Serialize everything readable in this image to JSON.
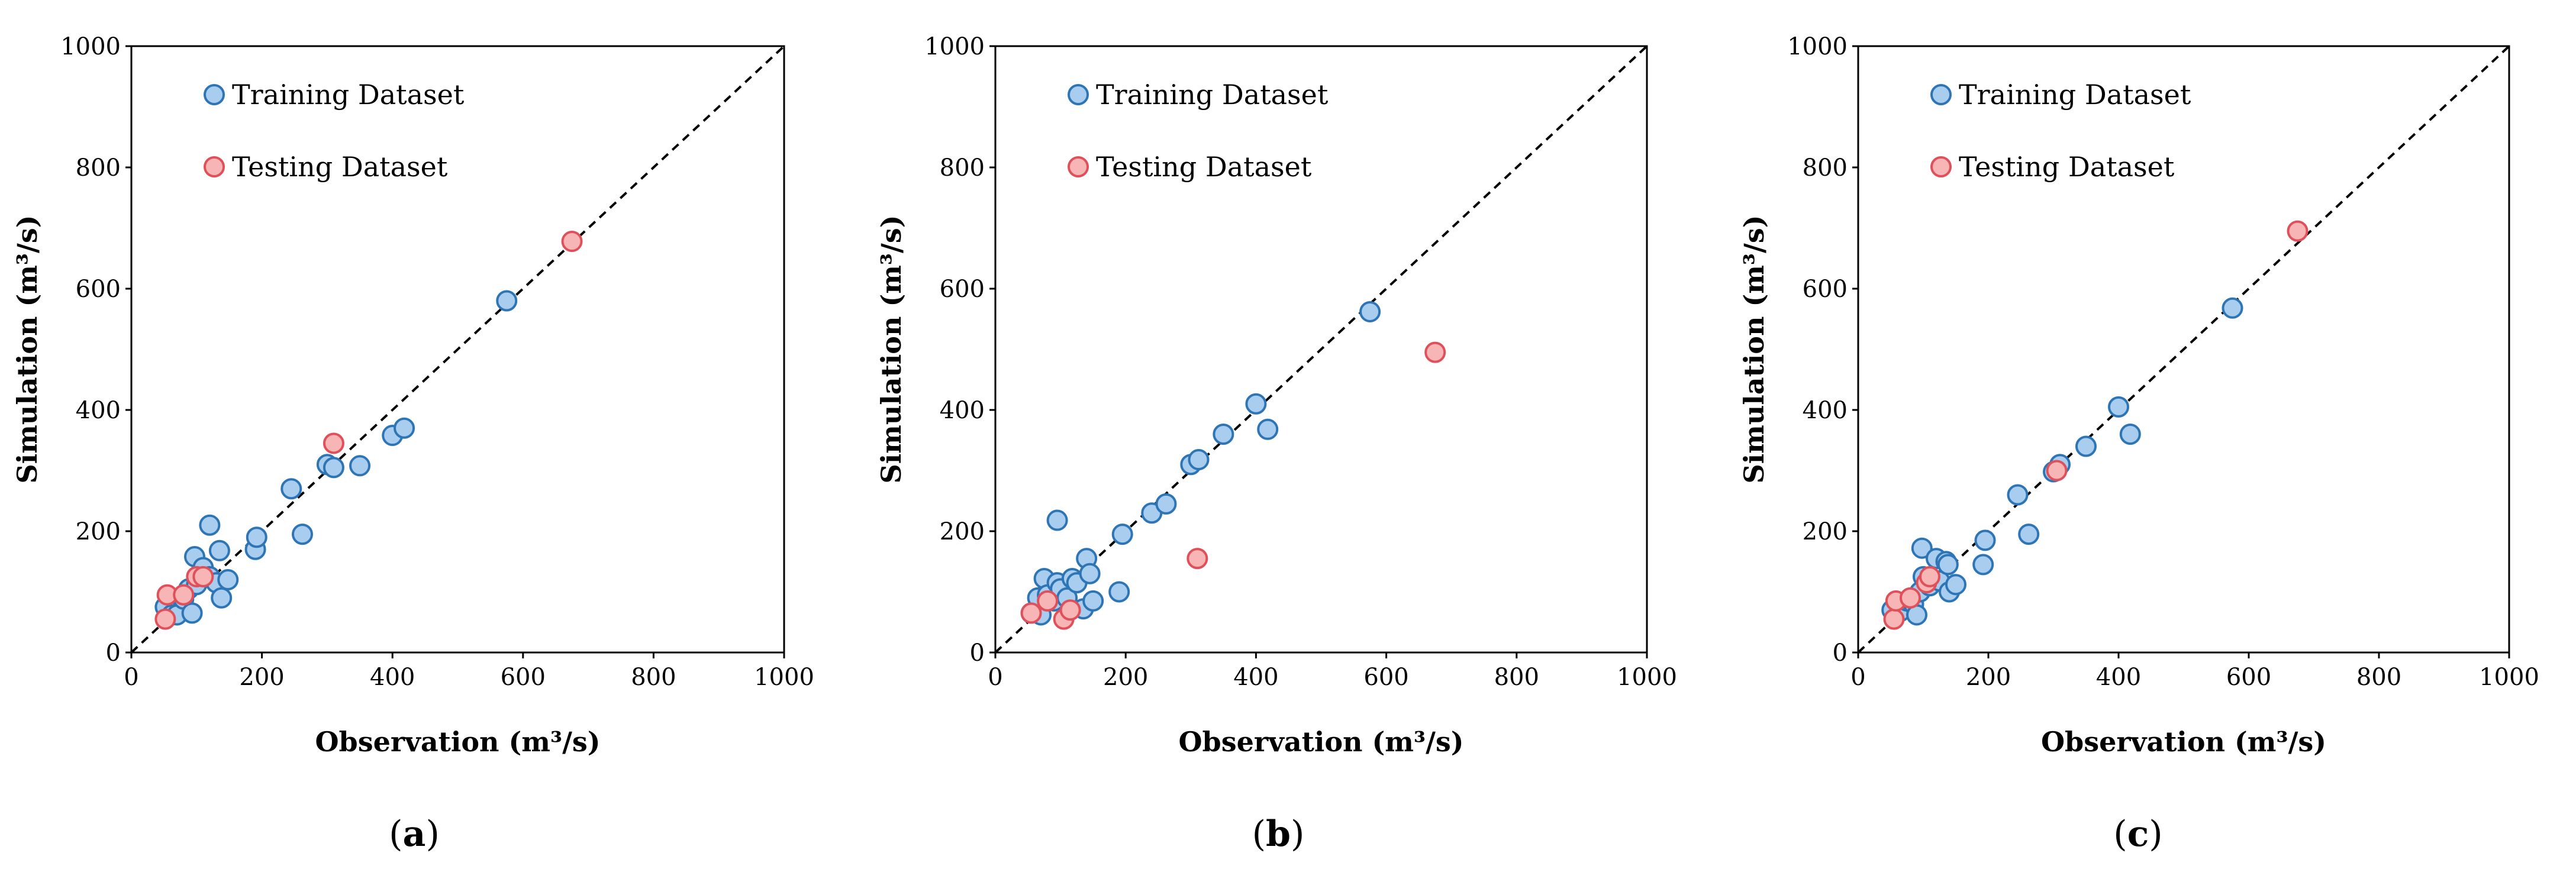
{
  "colors": {
    "training_fill": "#a9cdee",
    "training_edge": "#2e75b6",
    "testing_fill": "#f7b5b5",
    "testing_edge": "#e0505a",
    "diagonal": "#000000"
  },
  "chart_data": [
    {
      "type": "scatter",
      "panel": "a",
      "caption_open": "(",
      "caption_letter": "a",
      "caption_close": ")",
      "xlabel": "Observation (m³/s)",
      "ylabel": "Simulation (m³/s)",
      "xlim": [
        0,
        1000
      ],
      "ylim": [
        0,
        1000
      ],
      "xticks": [
        "0",
        "200",
        "400",
        "600",
        "800",
        "1000"
      ],
      "yticks": [
        "0",
        "200",
        "400",
        "600",
        "800",
        "1000"
      ],
      "legend_position": "top-left",
      "reference_line": "1:1 dashed",
      "series": [
        {
          "name": "Training Dataset",
          "points": [
            [
              52,
              75
            ],
            [
              62,
              62
            ],
            [
              70,
              62
            ],
            [
              80,
              88
            ],
            [
              88,
              105
            ],
            [
              93,
              65
            ],
            [
              97,
              158
            ],
            [
              100,
              112
            ],
            [
              105,
              130
            ],
            [
              110,
              140
            ],
            [
              120,
              210
            ],
            [
              120,
              125
            ],
            [
              130,
              115
            ],
            [
              135,
              168
            ],
            [
              138,
              90
            ],
            [
              148,
              120
            ],
            [
              190,
              170
            ],
            [
              192,
              190
            ],
            [
              245,
              270
            ],
            [
              262,
              195
            ],
            [
              300,
              310
            ],
            [
              310,
              305
            ],
            [
              350,
              308
            ],
            [
              400,
              358
            ],
            [
              418,
              370
            ],
            [
              575,
              580
            ]
          ]
        },
        {
          "name": "Testing Dataset",
          "points": [
            [
              52,
              55
            ],
            [
              55,
              95
            ],
            [
              80,
              95
            ],
            [
              100,
              125
            ],
            [
              110,
              125
            ],
            [
              310,
              345
            ],
            [
              675,
              678
            ]
          ]
        }
      ]
    },
    {
      "type": "scatter",
      "panel": "b",
      "caption_open": "(",
      "caption_letter": "b",
      "caption_close": ")",
      "xlabel": "Observation (m³/s)",
      "ylabel": "Simulation (m³/s)",
      "xlim": [
        0,
        1000
      ],
      "ylim": [
        0,
        1000
      ],
      "xticks": [
        "0",
        "200",
        "400",
        "600",
        "800",
        "1000"
      ],
      "yticks": [
        "0",
        "200",
        "400",
        "600",
        "800",
        "1000"
      ],
      "legend_position": "top-left",
      "reference_line": "1:1 dashed",
      "series": [
        {
          "name": "Training Dataset",
          "points": [
            [
              55,
              65
            ],
            [
              65,
              90
            ],
            [
              70,
              62
            ],
            [
              75,
              122
            ],
            [
              80,
              95
            ],
            [
              90,
              85
            ],
            [
              95,
              115
            ],
            [
              95,
              218
            ],
            [
              100,
              105
            ],
            [
              110,
              90
            ],
            [
              118,
              122
            ],
            [
              125,
              115
            ],
            [
              135,
              72
            ],
            [
              140,
              155
            ],
            [
              145,
              130
            ],
            [
              150,
              85
            ],
            [
              190,
              100
            ],
            [
              195,
              195
            ],
            [
              240,
              230
            ],
            [
              262,
              245
            ],
            [
              300,
              310
            ],
            [
              312,
              318
            ],
            [
              350,
              360
            ],
            [
              400,
              410
            ],
            [
              418,
              368
            ],
            [
              575,
              562
            ]
          ]
        },
        {
          "name": "Testing Dataset",
          "points": [
            [
              55,
              65
            ],
            [
              80,
              85
            ],
            [
              105,
              55
            ],
            [
              115,
              70
            ],
            [
              310,
              155
            ],
            [
              675,
              495
            ]
          ]
        }
      ]
    },
    {
      "type": "scatter",
      "panel": "c",
      "caption_open": "(",
      "caption_letter": "c",
      "caption_close": ")",
      "xlabel": "Observation (m³/s)",
      "ylabel": "Simulation (m³/s)",
      "xlim": [
        0,
        1000
      ],
      "ylim": [
        0,
        1000
      ],
      "xticks": [
        "0",
        "200",
        "400",
        "600",
        "800",
        "1000"
      ],
      "yticks": [
        "0",
        "200",
        "400",
        "600",
        "800",
        "1000"
      ],
      "legend_position": "top-left",
      "reference_line": "1:1 dashed",
      "series": [
        {
          "name": "Training Dataset",
          "points": [
            [
              52,
              70
            ],
            [
              65,
              68
            ],
            [
              75,
              85
            ],
            [
              85,
              80
            ],
            [
              90,
              62
            ],
            [
              95,
              100
            ],
            [
              98,
              172
            ],
            [
              100,
              125
            ],
            [
              110,
              110
            ],
            [
              120,
              155
            ],
            [
              125,
              118
            ],
            [
              135,
              150
            ],
            [
              138,
              145
            ],
            [
              140,
              100
            ],
            [
              150,
              112
            ],
            [
              192,
              145
            ],
            [
              195,
              185
            ],
            [
              245,
              260
            ],
            [
              262,
              195
            ],
            [
              300,
              298
            ],
            [
              310,
              310
            ],
            [
              350,
              340
            ],
            [
              400,
              405
            ],
            [
              418,
              360
            ],
            [
              575,
              568
            ]
          ]
        },
        {
          "name": "Testing Dataset",
          "points": [
            [
              55,
              55
            ],
            [
              58,
              85
            ],
            [
              80,
              90
            ],
            [
              105,
              115
            ],
            [
              110,
              125
            ],
            [
              305,
              300
            ],
            [
              675,
              695
            ]
          ]
        }
      ]
    }
  ]
}
